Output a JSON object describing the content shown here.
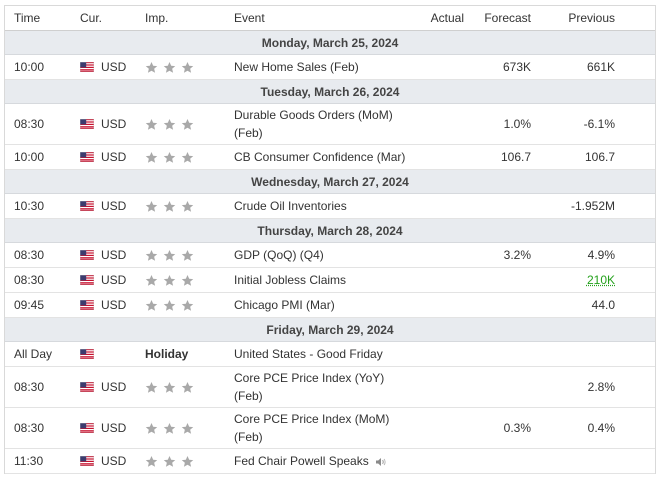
{
  "columns": {
    "time": "Time",
    "currency": "Cur.",
    "importance": "Imp.",
    "event": "Event",
    "actual": "Actual",
    "forecast": "Forecast",
    "previous": "Previous"
  },
  "icons": {
    "flag": "us-flag-icon",
    "star": "star-icon",
    "speaker": "speaker-icon"
  },
  "colors": {
    "star_inactive": "#a9a9a9",
    "day_header_bg": "#e8ebef",
    "previous_better": "#24a11c"
  },
  "days": [
    {
      "date": "Monday, March 25, 2024",
      "events": [
        {
          "time": "10:00",
          "currency": "USD",
          "importance": 1,
          "event": "New Home Sales (Feb)",
          "actual": "",
          "forecast": "673K",
          "previous": "661K"
        }
      ]
    },
    {
      "date": "Tuesday, March 26, 2024",
      "events": [
        {
          "time": "08:30",
          "currency": "USD",
          "importance": 1,
          "event_line1": "Durable Goods Orders (MoM)",
          "event_line2": "(Feb)",
          "actual": "",
          "forecast": "1.0%",
          "previous": "-6.1%"
        },
        {
          "time": "10:00",
          "currency": "USD",
          "importance": 1,
          "event": "CB Consumer Confidence (Mar)",
          "actual": "",
          "forecast": "106.7",
          "previous": "106.7"
        }
      ]
    },
    {
      "date": "Wednesday, March 27, 2024",
      "events": [
        {
          "time": "10:30",
          "currency": "USD",
          "importance": 1,
          "event": "Crude Oil Inventories",
          "actual": "",
          "forecast": "",
          "previous": "-1.952M"
        }
      ]
    },
    {
      "date": "Thursday, March 28, 2024",
      "events": [
        {
          "time": "08:30",
          "currency": "USD",
          "importance": 1,
          "event": "GDP (QoQ) (Q4)",
          "actual": "",
          "forecast": "3.2%",
          "previous": "4.9%"
        },
        {
          "time": "08:30",
          "currency": "USD",
          "importance": 1,
          "event": "Initial Jobless Claims",
          "actual": "",
          "forecast": "",
          "previous": "210K"
        },
        {
          "time": "09:45",
          "currency": "USD",
          "importance": 1,
          "event": "Chicago PMI (Mar)",
          "actual": "",
          "forecast": "",
          "previous": "44.0"
        }
      ]
    },
    {
      "date": "Friday, March 29, 2024",
      "events": [
        {
          "time": "All Day",
          "holiday_label": "Holiday",
          "event": "United States - Good Friday"
        },
        {
          "time": "08:30",
          "currency": "USD",
          "importance": 1,
          "event_line1": "Core PCE Price Index (YoY)",
          "event_line2": "(Feb)",
          "actual": "",
          "forecast": "",
          "previous": "2.8%"
        },
        {
          "time": "08:30",
          "currency": "USD",
          "importance": 1,
          "event_line1": "Core PCE Price Index (MoM)",
          "event_line2": "(Feb)",
          "actual": "",
          "forecast": "0.3%",
          "previous": "0.4%"
        },
        {
          "time": "11:30",
          "currency": "USD",
          "importance": 1,
          "event": "Fed Chair Powell Speaks",
          "actual": "",
          "forecast": "",
          "previous": ""
        }
      ]
    }
  ]
}
